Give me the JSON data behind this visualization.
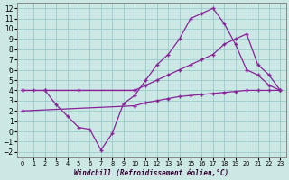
{
  "title": "",
  "xlabel": "Windchill (Refroidissement éolien,°C)",
  "bg_color": "#cce8e4",
  "grid_color": "#99cccc",
  "line_color": "#882299",
  "xlim": [
    -0.5,
    23.5
  ],
  "ylim": [
    -2.5,
    12.5
  ],
  "xticks": [
    0,
    1,
    2,
    3,
    4,
    5,
    6,
    7,
    8,
    9,
    10,
    11,
    12,
    13,
    14,
    15,
    16,
    17,
    18,
    19,
    20,
    21,
    22,
    23
  ],
  "yticks": [
    -2,
    -1,
    0,
    1,
    2,
    3,
    4,
    5,
    6,
    7,
    8,
    9,
    10,
    11,
    12
  ],
  "line1_x": [
    0,
    1,
    2,
    10
  ],
  "line1_y": [
    4,
    4,
    4,
    4
  ],
  "line2_x": [
    0,
    10,
    11,
    12,
    13,
    14,
    15,
    16,
    17,
    18,
    19,
    20,
    21,
    22,
    23
  ],
  "line2_y": [
    2,
    2.5,
    2.8,
    3.0,
    3.2,
    3.4,
    3.5,
    3.6,
    3.7,
    3.8,
    3.9,
    4.0,
    4.0,
    4.0,
    4.0
  ],
  "line3_x": [
    2,
    3,
    4,
    5,
    6,
    7,
    8,
    9,
    10,
    11,
    12,
    13,
    14,
    15,
    16,
    17,
    18,
    19,
    20,
    21,
    22,
    23
  ],
  "line3_y": [
    4.0,
    2.6,
    1.5,
    0.4,
    0.2,
    -1.8,
    -0.2,
    2.7,
    3.5,
    5.0,
    6.5,
    7.5,
    9.0,
    11.0,
    11.5,
    12.0,
    10.5,
    8.5,
    6.0,
    5.5,
    4.5,
    4.0
  ],
  "line4_x": [
    0,
    5,
    10,
    11,
    12,
    13,
    14,
    15,
    16,
    17,
    18,
    19,
    20,
    21,
    22,
    23
  ],
  "line4_y": [
    4.0,
    4.0,
    4.0,
    4.5,
    5.0,
    5.5,
    6.0,
    6.5,
    7.0,
    7.5,
    8.5,
    9.0,
    9.5,
    6.5,
    5.5,
    4.0
  ]
}
